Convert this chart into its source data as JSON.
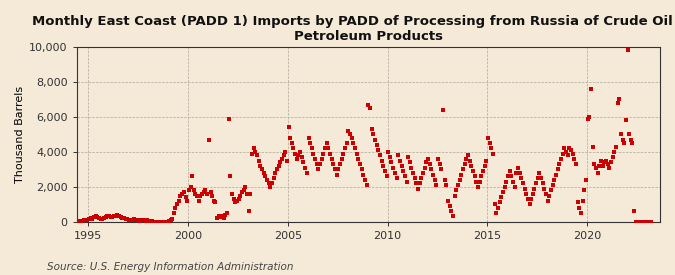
{
  "title": "Monthly East Coast (PADD 1) Imports by PADD of Processing from Russia of Crude Oil and\nPetroleum Products",
  "ylabel": "Thousand Barrels",
  "source": "Source: U.S. Energy Information Administration",
  "background_color": "#f5ead8",
  "plot_bg_color": "#f5ead8",
  "marker_color": "#cc0000",
  "marker_size": 5,
  "ylim": [
    0,
    10000
  ],
  "yticks": [
    0,
    2000,
    4000,
    6000,
    8000,
    10000
  ],
  "ytick_labels": [
    "0",
    "2,000",
    "4,000",
    "6,000",
    "8,000",
    "10,000"
  ],
  "xtick_years": [
    1995,
    2000,
    2005,
    2010,
    2015,
    2020
  ],
  "xlim_start": [
    1994,
    6,
    1
  ],
  "xlim_end": [
    2023,
    9,
    1
  ],
  "title_fontsize": 9.5,
  "axis_fontsize": 8,
  "source_fontsize": 7.5,
  "data": [
    [
      1994,
      7,
      20
    ],
    [
      1994,
      8,
      50
    ],
    [
      1994,
      9,
      60
    ],
    [
      1994,
      10,
      80
    ],
    [
      1994,
      11,
      100
    ],
    [
      1994,
      12,
      80
    ],
    [
      1995,
      1,
      150
    ],
    [
      1995,
      2,
      200
    ],
    [
      1995,
      3,
      180
    ],
    [
      1995,
      4,
      250
    ],
    [
      1995,
      5,
      300
    ],
    [
      1995,
      6,
      280
    ],
    [
      1995,
      7,
      200
    ],
    [
      1995,
      8,
      150
    ],
    [
      1995,
      9,
      180
    ],
    [
      1995,
      10,
      220
    ],
    [
      1995,
      11,
      280
    ],
    [
      1995,
      12,
      350
    ],
    [
      1996,
      1,
      300
    ],
    [
      1996,
      2,
      250
    ],
    [
      1996,
      3,
      280
    ],
    [
      1996,
      4,
      320
    ],
    [
      1996,
      5,
      350
    ],
    [
      1996,
      6,
      380
    ],
    [
      1996,
      7,
      300
    ],
    [
      1996,
      8,
      250
    ],
    [
      1996,
      9,
      220
    ],
    [
      1996,
      10,
      200
    ],
    [
      1996,
      11,
      180
    ],
    [
      1996,
      12,
      150
    ],
    [
      1997,
      1,
      100
    ],
    [
      1997,
      2,
      80
    ],
    [
      1997,
      3,
      120
    ],
    [
      1997,
      4,
      150
    ],
    [
      1997,
      5,
      100
    ],
    [
      1997,
      6,
      80
    ],
    [
      1997,
      7,
      50
    ],
    [
      1997,
      8,
      80
    ],
    [
      1997,
      9,
      100
    ],
    [
      1997,
      10,
      80
    ],
    [
      1997,
      11,
      50
    ],
    [
      1997,
      12,
      80
    ],
    [
      1998,
      1,
      50
    ],
    [
      1998,
      2,
      30
    ],
    [
      1998,
      3,
      20
    ],
    [
      1998,
      4,
      10
    ],
    [
      1998,
      5,
      5
    ],
    [
      1998,
      6,
      5
    ],
    [
      1998,
      7,
      5
    ],
    [
      1998,
      8,
      5
    ],
    [
      1998,
      9,
      5
    ],
    [
      1998,
      10,
      10
    ],
    [
      1998,
      11,
      5
    ],
    [
      1998,
      12,
      5
    ],
    [
      1999,
      1,
      50
    ],
    [
      1999,
      2,
      100
    ],
    [
      1999,
      3,
      150
    ],
    [
      1999,
      4,
      500
    ],
    [
      1999,
      5,
      800
    ],
    [
      1999,
      6,
      1000
    ],
    [
      1999,
      7,
      1200
    ],
    [
      1999,
      8,
      1500
    ],
    [
      1999,
      9,
      1600
    ],
    [
      1999,
      10,
      1700
    ],
    [
      1999,
      11,
      1400
    ],
    [
      1999,
      12,
      1200
    ],
    [
      2000,
      1,
      1800
    ],
    [
      2000,
      2,
      2000
    ],
    [
      2000,
      3,
      2600
    ],
    [
      2000,
      4,
      1800
    ],
    [
      2000,
      5,
      1600
    ],
    [
      2000,
      6,
      1500
    ],
    [
      2000,
      7,
      1200
    ],
    [
      2000,
      8,
      1500
    ],
    [
      2000,
      9,
      1600
    ],
    [
      2000,
      10,
      1700
    ],
    [
      2000,
      11,
      1800
    ],
    [
      2000,
      12,
      1600
    ],
    [
      2001,
      1,
      4700
    ],
    [
      2001,
      2,
      1700
    ],
    [
      2001,
      3,
      1500
    ],
    [
      2001,
      4,
      1200
    ],
    [
      2001,
      5,
      1100
    ],
    [
      2001,
      6,
      200
    ],
    [
      2001,
      7,
      350
    ],
    [
      2001,
      8,
      250
    ],
    [
      2001,
      9,
      300
    ],
    [
      2001,
      10,
      200
    ],
    [
      2001,
      11,
      400
    ],
    [
      2001,
      12,
      500
    ],
    [
      2002,
      1,
      5900
    ],
    [
      2002,
      2,
      2600
    ],
    [
      2002,
      3,
      1600
    ],
    [
      2002,
      4,
      1300
    ],
    [
      2002,
      5,
      1100
    ],
    [
      2002,
      6,
      1200
    ],
    [
      2002,
      7,
      1300
    ],
    [
      2002,
      8,
      1500
    ],
    [
      2002,
      9,
      1700
    ],
    [
      2002,
      10,
      1800
    ],
    [
      2002,
      11,
      2000
    ],
    [
      2002,
      12,
      1600
    ],
    [
      2003,
      1,
      600
    ],
    [
      2003,
      2,
      1600
    ],
    [
      2003,
      3,
      3900
    ],
    [
      2003,
      4,
      4200
    ],
    [
      2003,
      5,
      4000
    ],
    [
      2003,
      6,
      3800
    ],
    [
      2003,
      7,
      3500
    ],
    [
      2003,
      8,
      3200
    ],
    [
      2003,
      9,
      3000
    ],
    [
      2003,
      10,
      2800
    ],
    [
      2003,
      11,
      2600
    ],
    [
      2003,
      12,
      2400
    ],
    [
      2004,
      1,
      2200
    ],
    [
      2004,
      2,
      2000
    ],
    [
      2004,
      3,
      2200
    ],
    [
      2004,
      4,
      2500
    ],
    [
      2004,
      5,
      2800
    ],
    [
      2004,
      6,
      3000
    ],
    [
      2004,
      7,
      3200
    ],
    [
      2004,
      8,
      3400
    ],
    [
      2004,
      9,
      3600
    ],
    [
      2004,
      10,
      3800
    ],
    [
      2004,
      11,
      4000
    ],
    [
      2004,
      12,
      3500
    ],
    [
      2005,
      1,
      5400
    ],
    [
      2005,
      2,
      4800
    ],
    [
      2005,
      3,
      4500
    ],
    [
      2005,
      4,
      4200
    ],
    [
      2005,
      5,
      3900
    ],
    [
      2005,
      6,
      3600
    ],
    [
      2005,
      7,
      3800
    ],
    [
      2005,
      8,
      4000
    ],
    [
      2005,
      9,
      3700
    ],
    [
      2005,
      10,
      3400
    ],
    [
      2005,
      11,
      3100
    ],
    [
      2005,
      12,
      2800
    ],
    [
      2006,
      1,
      4800
    ],
    [
      2006,
      2,
      4500
    ],
    [
      2006,
      3,
      4200
    ],
    [
      2006,
      4,
      3900
    ],
    [
      2006,
      5,
      3600
    ],
    [
      2006,
      6,
      3300
    ],
    [
      2006,
      7,
      3000
    ],
    [
      2006,
      8,
      3300
    ],
    [
      2006,
      9,
      3600
    ],
    [
      2006,
      10,
      3900
    ],
    [
      2006,
      11,
      4200
    ],
    [
      2006,
      12,
      4500
    ],
    [
      2007,
      1,
      4200
    ],
    [
      2007,
      2,
      3900
    ],
    [
      2007,
      3,
      3600
    ],
    [
      2007,
      4,
      3300
    ],
    [
      2007,
      5,
      3000
    ],
    [
      2007,
      6,
      2700
    ],
    [
      2007,
      7,
      3000
    ],
    [
      2007,
      8,
      3300
    ],
    [
      2007,
      9,
      3600
    ],
    [
      2007,
      10,
      3900
    ],
    [
      2007,
      11,
      4200
    ],
    [
      2007,
      12,
      4500
    ],
    [
      2008,
      1,
      5200
    ],
    [
      2008,
      2,
      5000
    ],
    [
      2008,
      3,
      4800
    ],
    [
      2008,
      4,
      4500
    ],
    [
      2008,
      5,
      4200
    ],
    [
      2008,
      6,
      3900
    ],
    [
      2008,
      7,
      3600
    ],
    [
      2008,
      8,
      3300
    ],
    [
      2008,
      9,
      3000
    ],
    [
      2008,
      10,
      2700
    ],
    [
      2008,
      11,
      2400
    ],
    [
      2008,
      12,
      2100
    ],
    [
      2009,
      1,
      6700
    ],
    [
      2009,
      2,
      6500
    ],
    [
      2009,
      3,
      5300
    ],
    [
      2009,
      4,
      5000
    ],
    [
      2009,
      5,
      4700
    ],
    [
      2009,
      6,
      4400
    ],
    [
      2009,
      7,
      4100
    ],
    [
      2009,
      8,
      3800
    ],
    [
      2009,
      9,
      3500
    ],
    [
      2009,
      10,
      3200
    ],
    [
      2009,
      11,
      2900
    ],
    [
      2009,
      12,
      2600
    ],
    [
      2010,
      1,
      4000
    ],
    [
      2010,
      2,
      3700
    ],
    [
      2010,
      3,
      3400
    ],
    [
      2010,
      4,
      3100
    ],
    [
      2010,
      5,
      2800
    ],
    [
      2010,
      6,
      2500
    ],
    [
      2010,
      7,
      3800
    ],
    [
      2010,
      8,
      3500
    ],
    [
      2010,
      9,
      3200
    ],
    [
      2010,
      10,
      2900
    ],
    [
      2010,
      11,
      2600
    ],
    [
      2010,
      12,
      2300
    ],
    [
      2011,
      1,
      3700
    ],
    [
      2011,
      2,
      3400
    ],
    [
      2011,
      3,
      3100
    ],
    [
      2011,
      4,
      2800
    ],
    [
      2011,
      5,
      2500
    ],
    [
      2011,
      6,
      2200
    ],
    [
      2011,
      7,
      1900
    ],
    [
      2011,
      8,
      2200
    ],
    [
      2011,
      9,
      2500
    ],
    [
      2011,
      10,
      2800
    ],
    [
      2011,
      11,
      3100
    ],
    [
      2011,
      12,
      3400
    ],
    [
      2012,
      1,
      3600
    ],
    [
      2012,
      2,
      3300
    ],
    [
      2012,
      3,
      3000
    ],
    [
      2012,
      4,
      2700
    ],
    [
      2012,
      5,
      2400
    ],
    [
      2012,
      6,
      2100
    ],
    [
      2012,
      7,
      3600
    ],
    [
      2012,
      8,
      3300
    ],
    [
      2012,
      9,
      3000
    ],
    [
      2012,
      10,
      6400
    ],
    [
      2012,
      11,
      2400
    ],
    [
      2012,
      12,
      2100
    ],
    [
      2013,
      1,
      1200
    ],
    [
      2013,
      2,
      900
    ],
    [
      2013,
      3,
      600
    ],
    [
      2013,
      4,
      300
    ],
    [
      2013,
      5,
      1500
    ],
    [
      2013,
      6,
      1800
    ],
    [
      2013,
      7,
      2100
    ],
    [
      2013,
      8,
      2400
    ],
    [
      2013,
      9,
      2700
    ],
    [
      2013,
      10,
      3000
    ],
    [
      2013,
      11,
      3300
    ],
    [
      2013,
      12,
      3600
    ],
    [
      2014,
      1,
      3800
    ],
    [
      2014,
      2,
      3500
    ],
    [
      2014,
      3,
      3200
    ],
    [
      2014,
      4,
      2900
    ],
    [
      2014,
      5,
      2600
    ],
    [
      2014,
      6,
      2300
    ],
    [
      2014,
      7,
      2000
    ],
    [
      2014,
      8,
      2300
    ],
    [
      2014,
      9,
      2600
    ],
    [
      2014,
      10,
      2900
    ],
    [
      2014,
      11,
      3200
    ],
    [
      2014,
      12,
      3500
    ],
    [
      2015,
      1,
      4800
    ],
    [
      2015,
      2,
      4500
    ],
    [
      2015,
      3,
      4200
    ],
    [
      2015,
      4,
      3900
    ],
    [
      2015,
      5,
      1000
    ],
    [
      2015,
      6,
      500
    ],
    [
      2015,
      7,
      800
    ],
    [
      2015,
      8,
      1100
    ],
    [
      2015,
      9,
      1400
    ],
    [
      2015,
      10,
      1700
    ],
    [
      2015,
      11,
      2000
    ],
    [
      2015,
      12,
      2300
    ],
    [
      2016,
      1,
      2600
    ],
    [
      2016,
      2,
      2900
    ],
    [
      2016,
      3,
      2600
    ],
    [
      2016,
      4,
      2300
    ],
    [
      2016,
      5,
      2000
    ],
    [
      2016,
      6,
      2800
    ],
    [
      2016,
      7,
      3100
    ],
    [
      2016,
      8,
      2800
    ],
    [
      2016,
      9,
      2500
    ],
    [
      2016,
      10,
      2200
    ],
    [
      2016,
      11,
      1900
    ],
    [
      2016,
      12,
      1600
    ],
    [
      2017,
      1,
      1300
    ],
    [
      2017,
      2,
      1000
    ],
    [
      2017,
      3,
      1300
    ],
    [
      2017,
      4,
      1600
    ],
    [
      2017,
      5,
      1900
    ],
    [
      2017,
      6,
      2200
    ],
    [
      2017,
      7,
      2500
    ],
    [
      2017,
      8,
      2800
    ],
    [
      2017,
      9,
      2500
    ],
    [
      2017,
      10,
      2200
    ],
    [
      2017,
      11,
      1900
    ],
    [
      2017,
      12,
      1600
    ],
    [
      2018,
      1,
      1200
    ],
    [
      2018,
      2,
      1500
    ],
    [
      2018,
      3,
      1800
    ],
    [
      2018,
      4,
      2100
    ],
    [
      2018,
      5,
      2400
    ],
    [
      2018,
      6,
      2700
    ],
    [
      2018,
      7,
      3000
    ],
    [
      2018,
      8,
      3300
    ],
    [
      2018,
      9,
      3600
    ],
    [
      2018,
      10,
      3900
    ],
    [
      2018,
      11,
      4200
    ],
    [
      2018,
      12,
      4000
    ],
    [
      2019,
      1,
      3800
    ],
    [
      2019,
      2,
      4200
    ],
    [
      2019,
      3,
      4100
    ],
    [
      2019,
      4,
      3900
    ],
    [
      2019,
      5,
      3600
    ],
    [
      2019,
      6,
      3300
    ],
    [
      2019,
      7,
      1100
    ],
    [
      2019,
      8,
      800
    ],
    [
      2019,
      9,
      500
    ],
    [
      2019,
      10,
      1200
    ],
    [
      2019,
      11,
      1800
    ],
    [
      2019,
      12,
      2400
    ],
    [
      2020,
      1,
      5900
    ],
    [
      2020,
      2,
      6000
    ],
    [
      2020,
      3,
      7600
    ],
    [
      2020,
      4,
      4300
    ],
    [
      2020,
      5,
      3300
    ],
    [
      2020,
      6,
      3100
    ],
    [
      2020,
      7,
      2800
    ],
    [
      2020,
      8,
      3200
    ],
    [
      2020,
      9,
      3500
    ],
    [
      2020,
      10,
      3200
    ],
    [
      2020,
      11,
      3400
    ],
    [
      2020,
      12,
      3500
    ],
    [
      2021,
      1,
      3300
    ],
    [
      2021,
      2,
      3100
    ],
    [
      2021,
      3,
      3400
    ],
    [
      2021,
      4,
      3700
    ],
    [
      2021,
      5,
      4000
    ],
    [
      2021,
      6,
      4300
    ],
    [
      2021,
      7,
      6800
    ],
    [
      2021,
      8,
      7000
    ],
    [
      2021,
      9,
      5000
    ],
    [
      2021,
      10,
      4700
    ],
    [
      2021,
      11,
      4500
    ],
    [
      2021,
      12,
      5800
    ],
    [
      2022,
      1,
      9800
    ],
    [
      2022,
      2,
      5000
    ],
    [
      2022,
      3,
      4700
    ],
    [
      2022,
      4,
      4500
    ],
    [
      2022,
      5,
      600
    ],
    [
      2022,
      6,
      5
    ],
    [
      2022,
      7,
      5
    ],
    [
      2022,
      8,
      5
    ],
    [
      2022,
      9,
      5
    ],
    [
      2022,
      10,
      5
    ],
    [
      2022,
      11,
      5
    ],
    [
      2022,
      12,
      5
    ],
    [
      2023,
      1,
      5
    ],
    [
      2023,
      2,
      5
    ],
    [
      2023,
      3,
      5
    ]
  ]
}
